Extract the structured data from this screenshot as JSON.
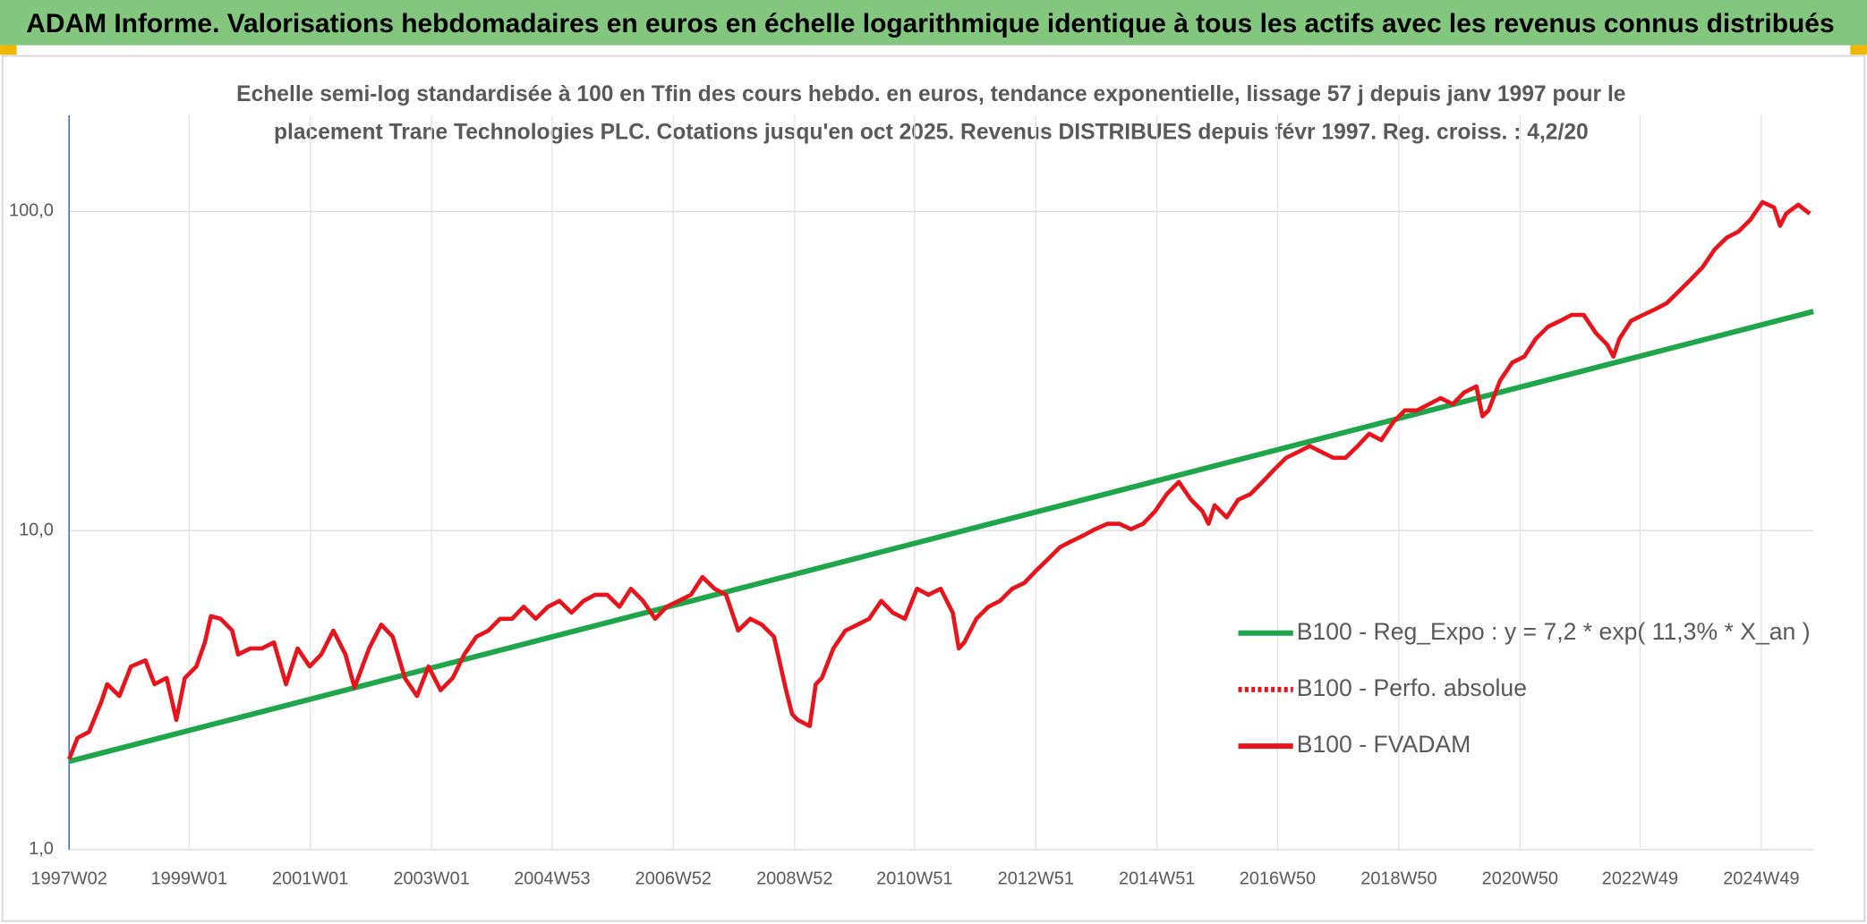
{
  "chart_data": {
    "type": "line",
    "title": "ADAM Informe. Valorisations hebdomadaires en euros en échelle logarithmique identique à tous les actifs avec les revenus connus distribués",
    "subtitle": [
      "Echelle semi-log standardisée à 100 en Tfin des cours hebdo. en euros, tendance exponentielle, lissage 57 j depuis janv 1997 pour le",
      "placement Trane Technologies PLC. Cotations jusqu'en oct 2025. Revenus DISTRIBUES depuis févr 1997. Reg. croiss. : 4,2/20"
    ],
    "log_scale": true,
    "grid": true,
    "legend": "right",
    "xlim": [
      1997.02,
      2025.8
    ],
    "xticks": [
      {
        "value": 1997.02,
        "label": "1997W02"
      },
      {
        "value": 1999.0,
        "label": "1999W01"
      },
      {
        "value": 2001.0,
        "label": "2001W01"
      },
      {
        "value": 2003.0,
        "label": "2003W01"
      },
      {
        "value": 2004.99,
        "label": "2004W53"
      },
      {
        "value": 2006.99,
        "label": "2006W52"
      },
      {
        "value": 2008.99,
        "label": "2008W52"
      },
      {
        "value": 2010.97,
        "label": "2010W51"
      },
      {
        "value": 2012.97,
        "label": "2012W51"
      },
      {
        "value": 2014.97,
        "label": "2014W51"
      },
      {
        "value": 2016.96,
        "label": "2016W50"
      },
      {
        "value": 2018.96,
        "label": "2018W50"
      },
      {
        "value": 2020.96,
        "label": "2020W50"
      },
      {
        "value": 2022.94,
        "label": "2022W49"
      },
      {
        "value": 2024.94,
        "label": "2024W49"
      }
    ],
    "ylim": [
      1,
      200
    ],
    "yticks": [
      {
        "value": 1,
        "label": "1,0"
      },
      {
        "value": 10,
        "label": "10,0"
      },
      {
        "value": 100,
        "label": "100,0"
      }
    ],
    "series": [
      {
        "name": "B100 - Reg_Expo : y = 7,2 * exp( 11,3% *  X_an )",
        "color": "#1fa64a",
        "x": [
          1997.02,
          2025.8
        ],
        "values": [
          1.89,
          48.6
        ]
      },
      {
        "name": "B100 - Perfo. absolue",
        "color": "#e8141c",
        "dash": true
      },
      {
        "name": "B100 - FVADAM",
        "color": "#e8141c",
        "x": [
          1997.02,
          1997.16,
          1997.35,
          1997.55,
          1997.65,
          1997.85,
          1998.04,
          1998.28,
          1998.43,
          1998.63,
          1998.79,
          1998.93,
          1999.12,
          1999.26,
          1999.36,
          1999.52,
          1999.71,
          1999.81,
          2000.01,
          2000.2,
          2000.4,
          2000.6,
          2000.79,
          2000.99,
          2001.18,
          2001.38,
          2001.58,
          2001.73,
          2001.97,
          2002.17,
          2002.36,
          2002.56,
          2002.76,
          2002.95,
          2003.15,
          2003.35,
          2003.54,
          2003.74,
          2003.94,
          2004.13,
          2004.33,
          2004.52,
          2004.72,
          2004.92,
          2005.11,
          2005.31,
          2005.51,
          2005.7,
          2005.9,
          2006.1,
          2006.29,
          2006.49,
          2006.69,
          2006.88,
          2007.08,
          2007.28,
          2007.47,
          2007.67,
          2007.86,
          2008.06,
          2008.26,
          2008.45,
          2008.65,
          2008.85,
          2008.95,
          2009.04,
          2009.24,
          2009.34,
          2009.44,
          2009.63,
          2009.83,
          2010.03,
          2010.22,
          2010.42,
          2010.61,
          2010.81,
          2011.01,
          2011.2,
          2011.4,
          2011.6,
          2011.7,
          2011.79,
          2011.99,
          2012.19,
          2012.38,
          2012.58,
          2012.78,
          2012.97,
          2013.17,
          2013.37,
          2013.56,
          2013.76,
          2013.95,
          2014.15,
          2014.35,
          2014.54,
          2014.74,
          2014.94,
          2015.13,
          2015.33,
          2015.53,
          2015.72,
          2015.82,
          2015.92,
          2016.12,
          2016.31,
          2016.51,
          2016.71,
          2016.9,
          2017.1,
          2017.29,
          2017.49,
          2017.69,
          2017.88,
          2018.08,
          2018.28,
          2018.47,
          2018.67,
          2018.87,
          2019.06,
          2019.26,
          2019.46,
          2019.65,
          2019.85,
          2020.04,
          2020.24,
          2020.34,
          2020.44,
          2020.63,
          2020.83,
          2021.03,
          2021.22,
          2021.42,
          2021.62,
          2021.81,
          2022.01,
          2022.21,
          2022.4,
          2022.5,
          2022.6,
          2022.79,
          2022.99,
          2023.19,
          2023.38,
          2023.58,
          2023.78,
          2023.97,
          2024.17,
          2024.37,
          2024.56,
          2024.76,
          2024.96,
          2025.15,
          2025.25,
          2025.35,
          2025.55,
          2025.74
        ],
        "values": [
          1.92,
          2.24,
          2.34,
          2.9,
          3.3,
          3.03,
          3.75,
          3.92,
          3.3,
          3.45,
          2.55,
          3.45,
          3.75,
          4.46,
          5.39,
          5.29,
          4.86,
          4.09,
          4.27,
          4.27,
          4.46,
          3.3,
          4.27,
          3.75,
          4.09,
          4.86,
          4.09,
          3.22,
          4.27,
          5.07,
          4.65,
          3.45,
          3.03,
          3.75,
          3.16,
          3.45,
          4.09,
          4.65,
          4.86,
          5.29,
          5.29,
          5.77,
          5.29,
          5.77,
          6.02,
          5.53,
          6.02,
          6.29,
          6.29,
          5.77,
          6.57,
          6.02,
          5.29,
          5.77,
          6.02,
          6.29,
          7.15,
          6.57,
          6.29,
          4.86,
          5.29,
          5.07,
          4.65,
          3.16,
          2.66,
          2.55,
          2.44,
          3.3,
          3.45,
          4.27,
          4.86,
          5.07,
          5.29,
          6.02,
          5.53,
          5.29,
          6.57,
          6.29,
          6.57,
          5.53,
          4.27,
          4.46,
          5.29,
          5.77,
          6.02,
          6.57,
          6.85,
          7.47,
          8.13,
          8.87,
          9.26,
          9.66,
          10.1,
          10.5,
          10.5,
          10.1,
          10.5,
          11.5,
          13.0,
          14.2,
          12.5,
          11.5,
          10.5,
          12.0,
          11.0,
          12.5,
          13.0,
          14.2,
          15.5,
          16.9,
          17.6,
          18.4,
          17.6,
          16.9,
          16.9,
          18.4,
          20.1,
          19.2,
          21.9,
          23.8,
          23.8,
          24.9,
          26.0,
          24.9,
          27.1,
          28.3,
          22.8,
          23.8,
          29.5,
          33.6,
          35.1,
          39.9,
          43.5,
          45.4,
          47.4,
          47.4,
          41.6,
          38.2,
          35.1,
          39.9,
          45.4,
          47.4,
          49.4,
          51.6,
          56.2,
          61.3,
          66.8,
          76.0,
          82.8,
          86.4,
          94.2,
          107,
          103,
          90.2,
          98.4,
          105,
          98.4
        ]
      }
    ]
  }
}
